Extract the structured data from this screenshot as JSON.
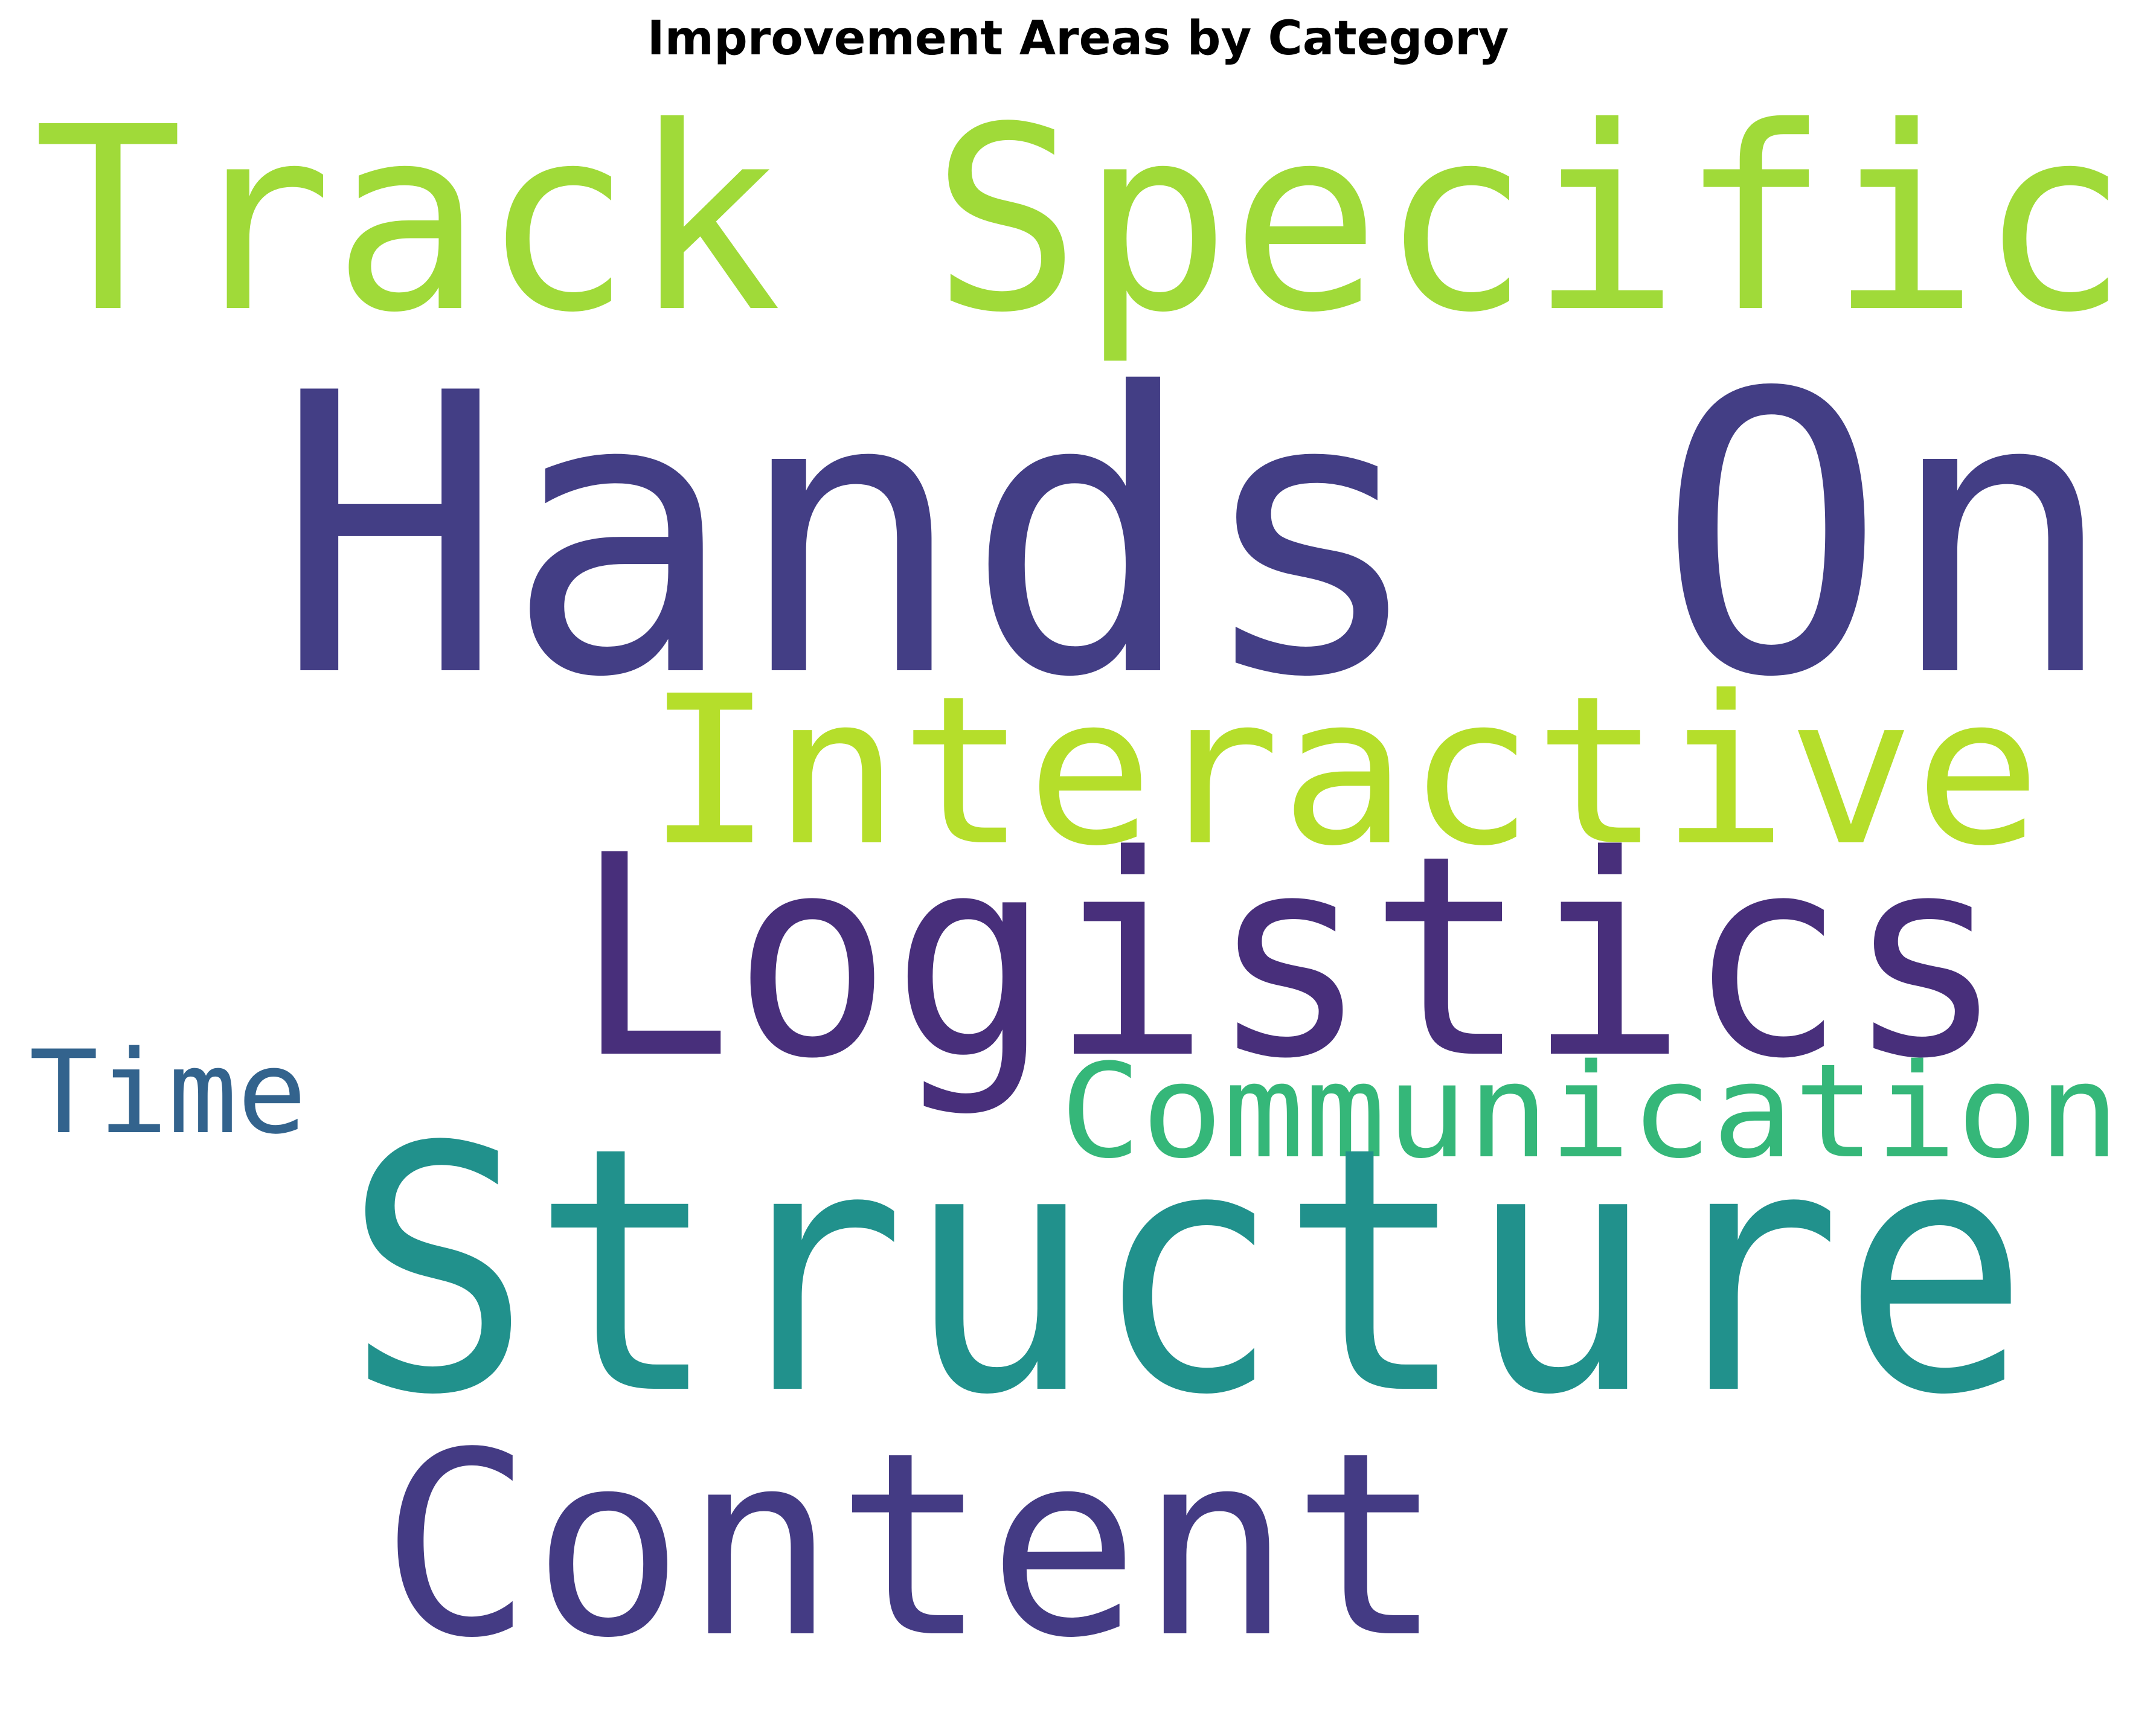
{
  "chart_data": {
    "type": "wordcloud",
    "title": "Improvement Areas by Category",
    "words": [
      {
        "text": "Track Specific",
        "color": "#a0da39"
      },
      {
        "text": "Hands On",
        "color": "#433e85"
      },
      {
        "text": "Interactive",
        "color": "#b5de2b"
      },
      {
        "text": "Logistics",
        "color": "#482f7b"
      },
      {
        "text": "Time",
        "color": "#33638d"
      },
      {
        "text": "Communication",
        "color": "#35b779"
      },
      {
        "text": "Structure",
        "color": "#21918c"
      },
      {
        "text": "Content",
        "color": "#443b84"
      }
    ]
  }
}
